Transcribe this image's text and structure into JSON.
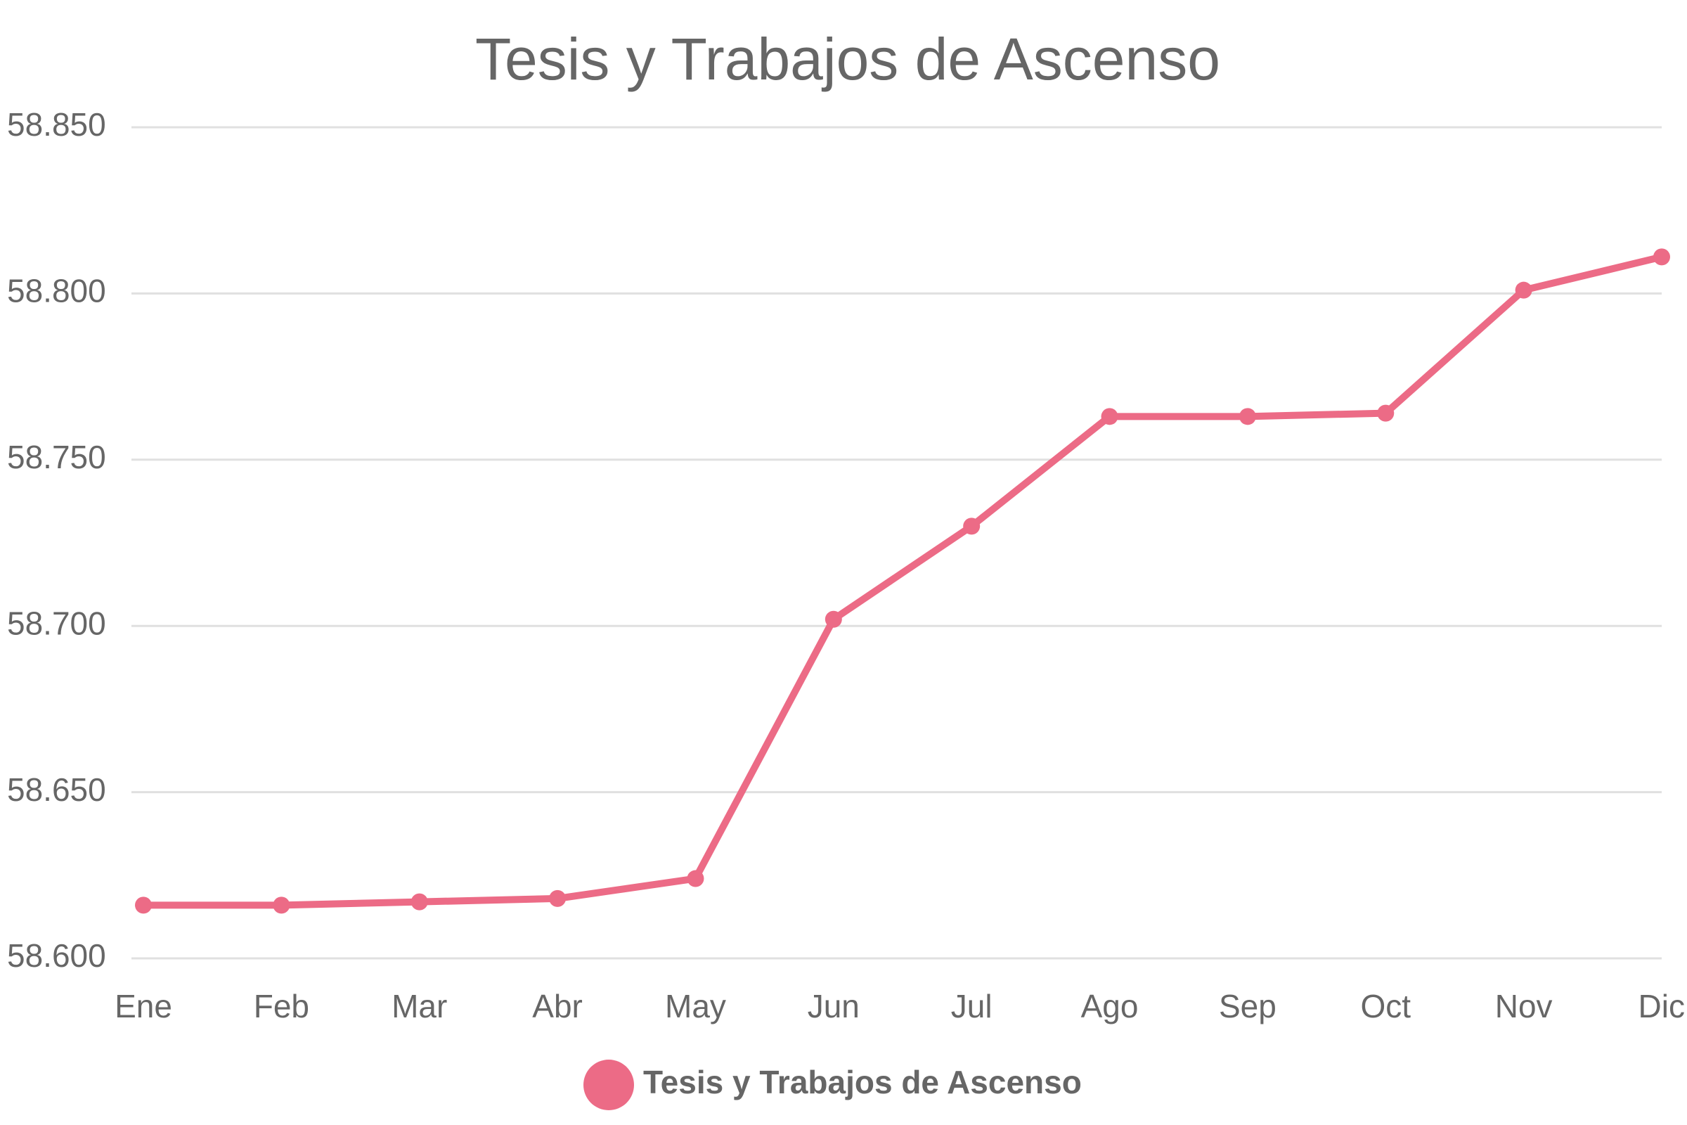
{
  "chart_data": {
    "type": "line",
    "title": "Tesis y Trabajos de Ascenso",
    "xlabel": "",
    "ylabel": "",
    "categories": [
      "Ene",
      "Feb",
      "Mar",
      "Abr",
      "May",
      "Jun",
      "Jul",
      "Ago",
      "Sep",
      "Oct",
      "Nov",
      "Dic"
    ],
    "series": [
      {
        "name": "Tesis y Trabajos de Ascenso",
        "color": "#ec6b86",
        "values": [
          58616,
          58616,
          58617,
          58618,
          58624,
          58702,
          58730,
          58763,
          58763,
          58764,
          58801,
          58811
        ]
      }
    ],
    "ylim": [
      58600,
      58850
    ],
    "y_ticks": [
      58600,
      58650,
      58700,
      58750,
      58800,
      58850
    ],
    "y_tick_labels": [
      "58.600",
      "58.650",
      "58.700",
      "58.750",
      "58.800",
      "58.850"
    ],
    "grid": true,
    "legend_position": "bottom",
    "colors": {
      "grid": "#e0e0e0",
      "text": "#666666"
    }
  }
}
